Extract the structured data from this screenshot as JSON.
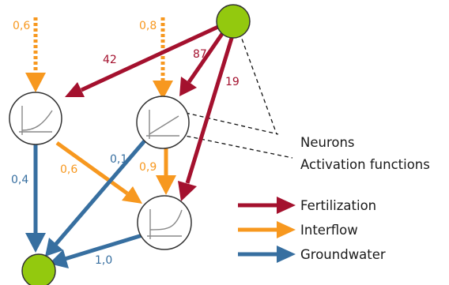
{
  "colors": {
    "fertilization": "#a4112e",
    "interflow": "#f7981f",
    "groundwater": "#376fa0",
    "node_green": "#93c90e",
    "node_stroke": "#333333"
  },
  "edge_labels": {
    "interflow_in_left": "0,6",
    "interflow_in_mid": "0,8",
    "fert_to_left": "42",
    "fert_to_mid": "87",
    "fert_to_bottom": "19",
    "ground_left_out": "0,4",
    "interflow_left_to_bottom": "0,6",
    "ground_mid_out": "0,1",
    "interflow_mid_to_bottom": "0,9",
    "ground_bottom_out": "1,0"
  },
  "annotations": {
    "neurons": "Neurons",
    "activation": "Activation functions"
  },
  "legend": [
    {
      "label": "Fertilization",
      "color_key": "fertilization"
    },
    {
      "label": "Interflow",
      "color_key": "interflow"
    },
    {
      "label": "Groundwater",
      "color_key": "groundwater"
    }
  ]
}
